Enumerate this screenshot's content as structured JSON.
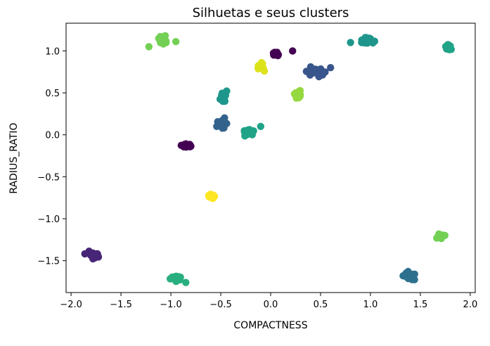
{
  "chart_data": {
    "type": "scatter",
    "title": "Silhuetas e seus clusters",
    "xlabel": "COMPACTNESS",
    "ylabel": "RADIUS_RATIO",
    "xlim": [
      -2.05,
      2.05
    ],
    "ylim": [
      -1.88,
      1.33
    ],
    "grid": false,
    "legend": "none",
    "x_ticks": [
      -2.0,
      -1.5,
      -1.0,
      -0.5,
      0.0,
      0.5,
      1.0,
      1.5,
      2.0
    ],
    "x_tick_labels": [
      "−2.0",
      "−1.5",
      "−1.0",
      "−0.5",
      "0.0",
      "0.5",
      "1.0",
      "1.5",
      "2.0"
    ],
    "y_ticks": [
      -1.5,
      -1.0,
      -0.5,
      0.0,
      0.5,
      1.0
    ],
    "y_tick_labels": [
      "−1.5",
      "−1.0",
      "−0.5",
      "0.0",
      "0.5",
      "1.0"
    ],
    "colormap": "viridis",
    "clusters": [
      {
        "center": [
          -1.77,
          -1.44
        ],
        "spread": [
          0.06,
          0.04
        ],
        "n": 26,
        "color": "#482677",
        "extra": []
      },
      {
        "center": [
          -0.97,
          -1.71
        ],
        "spread": [
          0.05,
          0.03
        ],
        "n": 18,
        "color": "#29af7f",
        "extra": [
          [
            -0.85,
            -1.76
          ]
        ]
      },
      {
        "center": [
          -1.07,
          1.13
        ],
        "spread": [
          0.05,
          0.04
        ],
        "n": 14,
        "color": "#73d055",
        "extra": [
          [
            -1.22,
            1.05
          ],
          [
            -0.95,
            1.11
          ]
        ]
      },
      {
        "center": [
          -0.84,
          -0.13
        ],
        "spread": [
          0.05,
          0.02
        ],
        "n": 14,
        "color": "#440154",
        "extra": []
      },
      {
        "center": [
          -0.61,
          -0.73
        ],
        "spread": [
          0.04,
          0.02
        ],
        "n": 12,
        "color": "#fde725",
        "extra": []
      },
      {
        "center": [
          -0.47,
          0.46
        ],
        "spread": [
          0.03,
          0.06
        ],
        "n": 14,
        "color": "#1f968b",
        "extra": []
      },
      {
        "center": [
          -0.48,
          0.13
        ],
        "spread": [
          0.04,
          0.05
        ],
        "n": 18,
        "color": "#33638d",
        "extra": []
      },
      {
        "center": [
          -0.22,
          0.04
        ],
        "spread": [
          0.06,
          0.04
        ],
        "n": 18,
        "color": "#20a387",
        "extra": [
          [
            -0.1,
            0.1
          ]
        ]
      },
      {
        "center": [
          -0.1,
          0.81
        ],
        "spread": [
          0.04,
          0.04
        ],
        "n": 14,
        "color": "#dce319",
        "extra": []
      },
      {
        "center": [
          0.07,
          0.96
        ],
        "spread": [
          0.04,
          0.02
        ],
        "n": 14,
        "color": "#440154",
        "extra": [
          [
            0.22,
            1.0
          ]
        ]
      },
      {
        "center": [
          0.27,
          0.47
        ],
        "spread": [
          0.04,
          0.04
        ],
        "n": 16,
        "color": "#95d840",
        "extra": []
      },
      {
        "center": [
          0.46,
          0.75
        ],
        "spread": [
          0.07,
          0.04
        ],
        "n": 30,
        "color": "#39568c",
        "extra": [
          [
            0.6,
            0.8
          ]
        ]
      },
      {
        "center": [
          0.97,
          1.12
        ],
        "spread": [
          0.07,
          0.03
        ],
        "n": 26,
        "color": "#1f968b",
        "extra": [
          [
            0.8,
            1.1
          ]
        ]
      },
      {
        "center": [
          1.78,
          1.05
        ],
        "spread": [
          0.03,
          0.04
        ],
        "n": 14,
        "color": "#20a387",
        "extra": []
      },
      {
        "center": [
          1.7,
          -1.21
        ],
        "spread": [
          0.04,
          0.03
        ],
        "n": 12,
        "color": "#73d055",
        "extra": []
      },
      {
        "center": [
          1.38,
          -1.68
        ],
        "spread": [
          0.05,
          0.04
        ],
        "n": 22,
        "color": "#2d708e",
        "extra": []
      }
    ]
  }
}
